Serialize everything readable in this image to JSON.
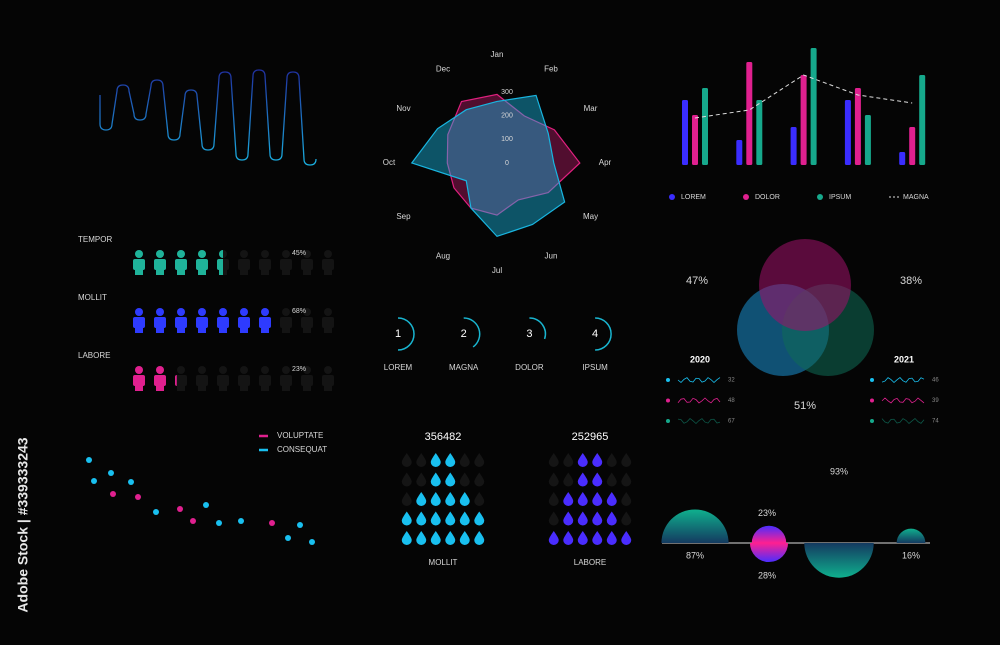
{
  "watermark": "Adobe Stock | #339333243",
  "chart_data": [
    {
      "type": "radar",
      "categories": [
        "Jan",
        "Feb",
        "Mar",
        "Apr",
        "May",
        "Jun",
        "Jul",
        "Aug",
        "Sep",
        "Oct",
        "Nov",
        "Dec"
      ],
      "rlim": [
        0,
        300
      ],
      "rticks": [
        0,
        100,
        200,
        300
      ],
      "series": [
        {
          "color": "#e0207f",
          "values": [
            290,
            230,
            280,
            350,
            250,
            180,
            220,
            220,
            210,
            210,
            240,
            300
          ]
        },
        {
          "color": "#19b5e0",
          "values": [
            260,
            330,
            250,
            240,
            330,
            300,
            310,
            220,
            150,
            360,
            290,
            260
          ]
        }
      ]
    },
    {
      "type": "bar",
      "categories": [
        null,
        null,
        null,
        null,
        null
      ],
      "ylim": [
        0,
        120
      ],
      "series": [
        {
          "name": "LOREM",
          "color": "#3a2dff",
          "values": [
            65,
            25,
            38,
            65,
            13
          ]
        },
        {
          "name": "DOLOR",
          "color": "#e0208f",
          "values": [
            50,
            103,
            90,
            77,
            38
          ]
        },
        {
          "name": "IPSUM",
          "color": "#16a98c",
          "values": [
            77,
            65,
            117,
            50,
            90
          ]
        },
        {
          "name": "MAGNA",
          "color": "#dddddd",
          "type": "line",
          "values": [
            47,
            55,
            90,
            70,
            62
          ]
        }
      ]
    },
    {
      "type": "pictograph",
      "categories": [
        "TEMPOR",
        "MOLLIT",
        "LABORE"
      ],
      "values": [
        45,
        68,
        23
      ],
      "value_labels": [
        "45%",
        "68%",
        "23%"
      ],
      "xlim": [
        0,
        100
      ],
      "colors": [
        "#1fb39a",
        "#2e3bff",
        "#e0208f"
      ]
    },
    {
      "type": "scatter",
      "xlim": [
        0,
        240
      ],
      "ylim": [
        0,
        100
      ],
      "series": [
        {
          "name": "VOLUPTATE",
          "color": "#e0208f",
          "x": [
            33,
            58,
            100,
            113,
            192
          ],
          "y": [
            56,
            53,
            41,
            29,
            27
          ]
        },
        {
          "name": "CONSEQUAT",
          "color": "#19c0f0",
          "x": [
            9,
            31,
            14,
            51,
            76,
            126,
            139,
            161,
            208,
            220,
            232
          ],
          "y": [
            90,
            77,
            69,
            68,
            38,
            45,
            27,
            29,
            12,
            25,
            8
          ]
        }
      ]
    },
    {
      "type": "ring",
      "labels": [
        "1",
        "2",
        "3",
        "4"
      ],
      "categories": [
        "LOREM",
        "MAGNA",
        "DOLOR",
        "IPSUM"
      ],
      "values": [
        50,
        40,
        30,
        50
      ],
      "ylim": [
        0,
        100
      ],
      "color": "#19b5d0"
    },
    {
      "type": "droplets",
      "categories": [
        "MOLLIT",
        "LABORE"
      ],
      "values": [
        356482,
        252965
      ],
      "colors": [
        "#19c0f0",
        "#4a2dff"
      ]
    },
    {
      "type": "venn",
      "values": [
        47,
        38,
        51
      ],
      "value_labels": [
        "47%",
        "38%",
        "51%"
      ],
      "colors": [
        "#1a8fd0",
        "#0f6b55",
        "#a0106a"
      ]
    },
    {
      "type": "sparkline",
      "categories": [
        "2020",
        "2021"
      ],
      "series": [
        {
          "color": "#19c0f0",
          "values": [
            32,
            46
          ]
        },
        {
          "color": "#e0208f",
          "values": [
            48,
            39
          ]
        },
        {
          "color": "#16a98c",
          "values": [
            67,
            74
          ]
        }
      ]
    },
    {
      "type": "semicircle",
      "above": {
        "values": [
          87,
          23,
          null,
          16
        ],
        "value_labels": [
          "87%",
          "23%",
          null,
          "16%"
        ]
      },
      "below": {
        "values": [
          null,
          28,
          93,
          null
        ],
        "value_labels": [
          null,
          "28%",
          "93%",
          null
        ]
      }
    }
  ]
}
